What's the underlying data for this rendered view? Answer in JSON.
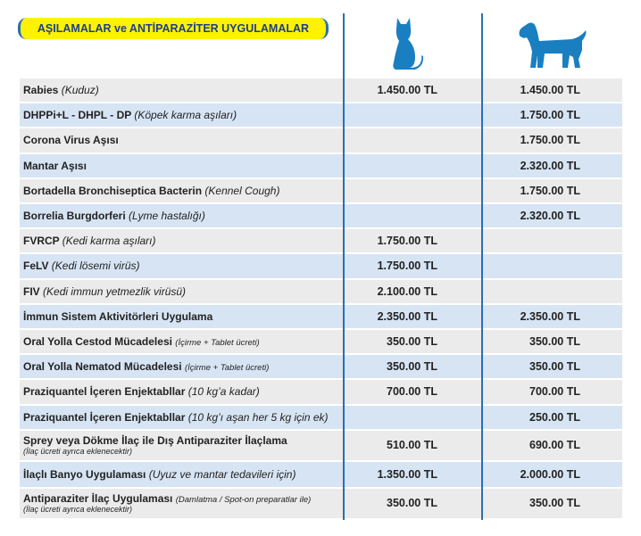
{
  "header": {
    "title": "AŞILAMALAR ve ANTİPARAZİTER UYGULAMALAR"
  },
  "table": {
    "rows": [
      {
        "name": "Rabies",
        "note": "(Kuduz)",
        "cat": "1.450.00 TL",
        "dog": "1.450.00 TL"
      },
      {
        "name": "DHPPi+L - DHPL - DP",
        "note": "(Köpek karma aşıları)",
        "dog": "1.750.00 TL"
      },
      {
        "name": "Corona Virus Aşısı",
        "dog": "1.750.00 TL"
      },
      {
        "name": "Mantar Aşısı",
        "dog": "2.320.00 TL"
      },
      {
        "name": "Bortadella Bronchiseptica Bacterin",
        "note": "(Kennel Cough)",
        "dog": "1.750.00 TL"
      },
      {
        "name": "Borrelia Burgdorferi",
        "note": "(Lyme hastalığı)",
        "dog": "2.320.00 TL"
      },
      {
        "name": "FVRCP",
        "note": "(Kedi karma aşıları)",
        "cat": "1.750.00 TL"
      },
      {
        "name": "FeLV",
        "note": "(Kedi lösemi virüs)",
        "cat": "1.750.00 TL"
      },
      {
        "name": "FIV",
        "note": "(Kedi immun yetmezlik virüsü)",
        "cat": "2.100.00 TL"
      },
      {
        "name": "İmmun Sistem Aktivitörleri Uygulama",
        "cat": "2.350.00 TL",
        "dog": "2.350.00 TL"
      },
      {
        "name": "Oral Yolla Cestod Mücadelesi",
        "small": "(İçirme + Tablet ücreti)",
        "cat": "350.00 TL",
        "dog": "350.00 TL"
      },
      {
        "name": "Oral Yolla Nematod Mücadelesi",
        "small": "(İçirme + Tablet ücreti)",
        "cat": "350.00 TL",
        "dog": "350.00 TL"
      },
      {
        "name": "Praziquantel İçeren Enjektabllar",
        "note": "(10 kg’a kadar)",
        "cat": "700.00 TL",
        "dog": "700.00 TL"
      },
      {
        "name": "Praziquantel İçeren Enjektabllar",
        "note": "(10 kg’ı aşan her 5 kg için ek)",
        "dog": "250.00 TL"
      },
      {
        "name": "Sprey veya Dökme İlaç ile Dış Antiparaziter İlaçlama",
        "sub": "(İlaç ücreti ayrıca eklenecektir)",
        "cat": "510.00 TL",
        "dog": "690.00 TL"
      },
      {
        "name": "İlaçlı Banyo Uygulaması",
        "note": "(Uyuz ve mantar tedavileri için)",
        "cat": "1.350.00 TL",
        "dog": "2.000.00 TL"
      },
      {
        "name": "Antiparaziter İlaç Uygulaması",
        "small": "(Damlatma / Spot-on preparatlar ile)",
        "sub": "(İlaç ücreti ayrıca eklenecektir)",
        "cat": "350.00 TL",
        "dog": "350.00 TL"
      }
    ]
  }
}
